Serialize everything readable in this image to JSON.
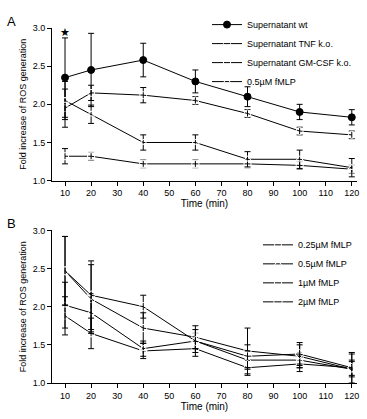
{
  "chart_data": [
    {
      "type": "line",
      "title": "A",
      "x_label": "Time (min)",
      "y_label": "Fold increase of ROS generation",
      "x": [
        10,
        20,
        40,
        60,
        80,
        100,
        120
      ],
      "xlim": [
        5,
        122
      ],
      "xticks": [
        10,
        20,
        30,
        40,
        50,
        60,
        70,
        80,
        90,
        100,
        110,
        120
      ],
      "ylim": [
        1,
        3
      ],
      "yticks": [
        {
          "value": 1,
          "label": "1.0"
        },
        1.5,
        {
          "value": 2,
          "label": "2.0"
        },
        2.5,
        {
          "value": 3,
          "label": "3.0"
        }
      ],
      "grid": false,
      "legend": "top right",
      "annotations": [
        {
          "x": 10,
          "y": 2.95,
          "text": "★"
        }
      ],
      "series": [
        {
          "name": "Supernatant wt",
          "color": "#000000",
          "marker": "circle",
          "line_style": "solid",
          "values": [
            2.35,
            2.45,
            2.58,
            2.3,
            2.1,
            1.9,
            1.83
          ],
          "errors": [
            0.52,
            0.48,
            0.22,
            0.15,
            0.13,
            0.1,
            0.1
          ]
        },
        {
          "name": "Supernatant TNF k.o.",
          "color": "#000000",
          "marker": "circle-open",
          "line_style": "solid",
          "values": [
            1.95,
            2.15,
            2.12,
            2.05,
            1.88,
            1.65,
            1.6
          ],
          "errors": [
            0.25,
            0.1,
            0.1,
            0.05,
            0.05,
            0.05,
            0.05
          ]
        },
        {
          "name": "Supernatant GM-CSF k.o.",
          "color": "#000000",
          "marker": "square-open",
          "line_style": "solid",
          "values": [
            1.32,
            1.32,
            1.22,
            1.22,
            1.22,
            1.2,
            1.15
          ],
          "errors": [
            0.1,
            0.05,
            0.05,
            0.05,
            0.05,
            0.05,
            0.05
          ]
        },
        {
          "name": "0.5µM fMLP",
          "color": "#000000",
          "marker": "triangle-up-open",
          "line_style": "solid",
          "values": [
            2.05,
            1.87,
            1.5,
            1.5,
            1.28,
            1.28,
            1.17
          ],
          "errors": [
            0.25,
            0.12,
            0.1,
            0.1,
            0.1,
            0.12,
            0.12
          ]
        }
      ]
    },
    {
      "type": "line",
      "title": "B",
      "x_label": "Time (min)",
      "y_label": "Fold increase of ROS generation",
      "x": [
        10,
        20,
        40,
        60,
        80,
        100,
        120
      ],
      "xlim": [
        5,
        122
      ],
      "xticks": [
        10,
        20,
        30,
        40,
        50,
        60,
        70,
        80,
        90,
        100,
        110,
        120
      ],
      "ylim": [
        1,
        3
      ],
      "yticks": [
        {
          "value": 1,
          "label": "1.0"
        },
        1.5,
        {
          "value": 2,
          "label": "2.0"
        },
        2.5,
        {
          "value": 3,
          "label": "3.0"
        }
      ],
      "grid": false,
      "legend": "top right",
      "series": [
        {
          "name": "0.25µM fMLP",
          "color": "#000000",
          "marker": "circle-open",
          "line_style": "solid",
          "values": [
            1.88,
            1.65,
            1.42,
            1.45,
            1.2,
            1.25,
            1.2
          ],
          "errors": [
            0.25,
            0.2,
            0.1,
            0.1,
            0.1,
            0.1,
            0.1
          ]
        },
        {
          "name": "0.5µM fMLP",
          "color": "#000000",
          "marker": "triangle-up-open",
          "line_style": "solid",
          "values": [
            2.02,
            1.92,
            1.45,
            1.55,
            1.3,
            1.3,
            1.18
          ],
          "errors": [
            0.3,
            0.25,
            0.1,
            0.1,
            0.12,
            0.1,
            0.1
          ]
        },
        {
          "name": "1µM fMLP",
          "color": "#000000",
          "marker": "square-open",
          "line_style": "solid",
          "values": [
            2.47,
            2.1,
            1.72,
            1.6,
            1.42,
            1.35,
            1.18
          ],
          "errors": [
            0.45,
            0.45,
            0.2,
            0.15,
            0.3,
            0.15,
            0.2
          ]
        },
        {
          "name": "2µM fMLP",
          "color": "#000000",
          "marker": "diamond-open",
          "line_style": "solid",
          "values": [
            2.47,
            2.15,
            2.0,
            1.55,
            1.35,
            1.38,
            1.2
          ],
          "errors": [
            0.45,
            0.45,
            0.15,
            0.15,
            0.15,
            0.15,
            0.2
          ]
        }
      ]
    }
  ]
}
